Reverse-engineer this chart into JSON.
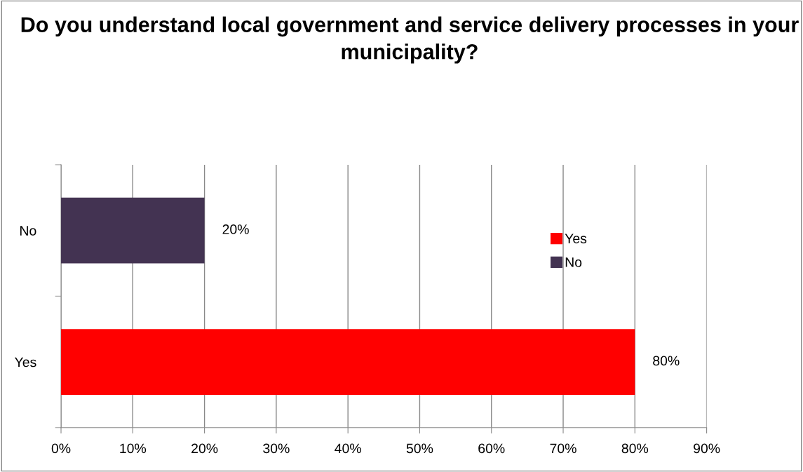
{
  "chart_data": {
    "type": "bar",
    "orientation": "horizontal",
    "title": "Do you understand local government and service delivery processes in your municipality?",
    "categories": [
      "No",
      "Yes"
    ],
    "series": [
      {
        "name": "Yes",
        "color": "#ff0000",
        "values": [
          null,
          80
        ],
        "value_labels": [
          null,
          "80%"
        ]
      },
      {
        "name": "No",
        "color": "#433352",
        "values": [
          20,
          null
        ],
        "value_labels": [
          "20%",
          null
        ]
      }
    ],
    "xlim": [
      0,
      90
    ],
    "xticks": [
      {
        "value": 0,
        "label": "0%"
      },
      {
        "value": 10,
        "label": "10%"
      },
      {
        "value": 20,
        "label": "20%"
      },
      {
        "value": 30,
        "label": "30%"
      },
      {
        "value": 40,
        "label": "40%"
      },
      {
        "value": 50,
        "label": "50%"
      },
      {
        "value": 60,
        "label": "60%"
      },
      {
        "value": 70,
        "label": "70%"
      },
      {
        "value": 80,
        "label": "80%"
      },
      {
        "value": 90,
        "label": "90%"
      }
    ],
    "grid": "x",
    "legend": "right"
  }
}
